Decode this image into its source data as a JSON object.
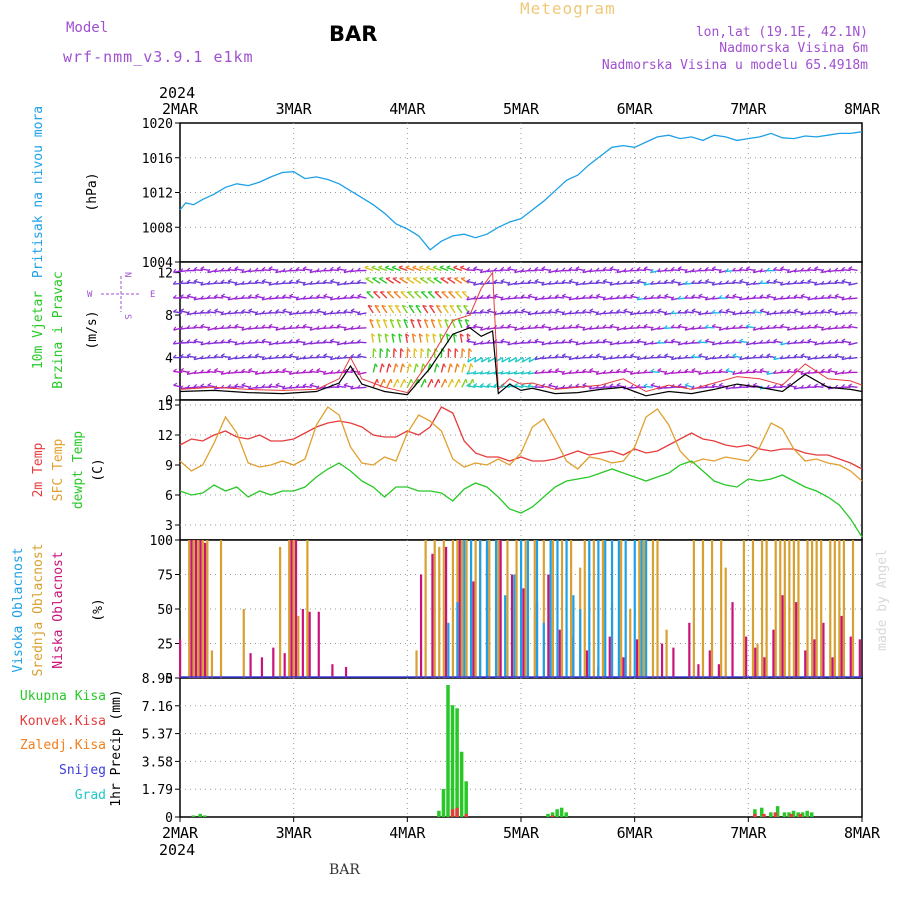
{
  "header": {
    "model_label": "Model",
    "model_value": "wrf-nmm_v3.9.1 e1km",
    "title": "BAR",
    "product": "Meteogram",
    "lonlat": "lon,lat (19.1E, 42.1N)",
    "elevation": "Nadmorska Visina 6m",
    "model_elevation": "Nadmorska Visina u modelu 65.4918m",
    "footer_station": "BAR",
    "watermark": "made by Angel"
  },
  "colors": {
    "pressure": "#1ea0e6",
    "t2m": "#e63c3c",
    "sfc": "#e0a030",
    "dewpt": "#28c828",
    "cloud_high": "#1ea0e6",
    "cloud_mid": "#d8a030",
    "cloud_low": "#c8147a",
    "precip_total": "#28c828",
    "precip_conv": "#e63c3c",
    "precip_frz": "#f08020",
    "precip_snow": "#3c3cdc",
    "precip_graupel": "#20c8c8",
    "purple_text": "#a050d0",
    "product_text": "#f0c878",
    "gust": "#e63c3c",
    "windspeed": "#000000"
  },
  "time_axis": {
    "year": "2024",
    "days": [
      "2MAR",
      "3MAR",
      "4MAR",
      "5MAR",
      "6MAR",
      "7MAR",
      "8MAR"
    ]
  },
  "chart_data": [
    {
      "id": "pressure",
      "type": "line",
      "ylabel_1": "Pritisak na nivou mora",
      "unit": "(hPa)",
      "ylim": [
        1004,
        1020
      ],
      "yticks": [
        "1004",
        "1008",
        "1012",
        "1016",
        "1020"
      ],
      "x_days": [
        0,
        0.05,
        0.12,
        0.2,
        0.3,
        0.4,
        0.5,
        0.6,
        0.7,
        0.8,
        0.9,
        1.0,
        1.1,
        1.2,
        1.3,
        1.4,
        1.5,
        1.6,
        1.7,
        1.8,
        1.9,
        2.0,
        2.1,
        2.2,
        2.3,
        2.4,
        2.5,
        2.6,
        2.7,
        2.8,
        2.9,
        3.0,
        3.1,
        3.2,
        3.3,
        3.4,
        3.5,
        3.6,
        3.7,
        3.8,
        3.9,
        4.0,
        4.1,
        4.2,
        4.3,
        4.4,
        4.5,
        4.6,
        4.7,
        4.8,
        4.9,
        5.0,
        5.1,
        5.2,
        5.3,
        5.4,
        5.5,
        5.6,
        5.7,
        5.8,
        5.9,
        6.0
      ],
      "values": [
        1010.0,
        1010.8,
        1010.6,
        1011.2,
        1011.8,
        1012.6,
        1013.0,
        1012.8,
        1013.2,
        1013.8,
        1014.3,
        1014.4,
        1013.6,
        1013.8,
        1013.5,
        1013.0,
        1012.2,
        1011.4,
        1010.6,
        1009.6,
        1008.4,
        1007.8,
        1007.0,
        1005.4,
        1006.4,
        1007.0,
        1007.2,
        1006.8,
        1007.2,
        1008.0,
        1008.6,
        1009.0,
        1010.0,
        1011.0,
        1012.2,
        1013.4,
        1014.0,
        1015.2,
        1016.2,
        1017.2,
        1017.4,
        1017.2,
        1017.8,
        1018.4,
        1018.6,
        1018.2,
        1018.4,
        1018.0,
        1018.6,
        1018.4,
        1018.0,
        1018.2,
        1018.4,
        1018.8,
        1018.3,
        1018.2,
        1018.5,
        1018.4,
        1018.6,
        1018.8,
        1018.8,
        1019.0
      ]
    },
    {
      "id": "wind",
      "type": "line",
      "ylabel_1": "10m Vjetar",
      "ylabel_2": "Brzina i Pravac",
      "unit": "(m/s)",
      "compass_north": "N",
      "compass_west": "W",
      "compass_east": "E",
      "compass_south": "S",
      "ylim": [
        0,
        13
      ],
      "yticks": [
        "0",
        "4",
        "8",
        "12"
      ],
      "x_days": [
        0,
        0.3,
        0.6,
        0.9,
        1.2,
        1.4,
        1.5,
        1.6,
        1.8,
        2.0,
        2.2,
        2.4,
        2.55,
        2.65,
        2.75,
        2.8,
        2.9,
        3.0,
        3.1,
        3.3,
        3.5,
        3.7,
        3.9,
        4.1,
        4.3,
        4.5,
        4.7,
        4.9,
        5.1,
        5.3,
        5.5,
        5.7,
        5.9,
        6.0
      ],
      "values": [
        0.8,
        0.9,
        0.7,
        0.6,
        0.8,
        1.6,
        3.2,
        1.5,
        0.8,
        0.5,
        3.0,
        6.2,
        6.8,
        6.0,
        6.5,
        0.6,
        1.5,
        0.9,
        1.1,
        0.6,
        0.7,
        1.0,
        1.2,
        0.4,
        0.8,
        0.6,
        1.0,
        1.5,
        1.2,
        0.8,
        2.4,
        1.2,
        1.0,
        0.8
      ],
      "gust_values": [
        1.0,
        1.2,
        1.0,
        0.9,
        1.0,
        2.0,
        4.0,
        2.0,
        1.2,
        0.7,
        3.8,
        7.5,
        8.0,
        10.5,
        12.0,
        1.0,
        2.0,
        1.5,
        1.6,
        1.0,
        1.2,
        1.4,
        2.0,
        0.8,
        1.4,
        1.0,
        1.6,
        2.2,
        2.0,
        1.4,
        3.4,
        2.0,
        1.8,
        1.4
      ]
    },
    {
      "id": "temperature",
      "type": "line",
      "ylabel_1": "2m Temp",
      "ylabel_2": "SFC Temp",
      "ylabel_3": "dewpt Temp",
      "unit": "(C)",
      "ylim": [
        1.5,
        15.5
      ],
      "yticks": [
        "3",
        "6",
        "9",
        "12",
        "15"
      ],
      "x_days": [
        0,
        0.1,
        0.2,
        0.3,
        0.4,
        0.5,
        0.6,
        0.7,
        0.8,
        0.9,
        1.0,
        1.1,
        1.2,
        1.3,
        1.4,
        1.5,
        1.6,
        1.7,
        1.8,
        1.9,
        2.0,
        2.1,
        2.2,
        2.3,
        2.4,
        2.5,
        2.6,
        2.7,
        2.8,
        2.9,
        3.0,
        3.1,
        3.2,
        3.3,
        3.4,
        3.5,
        3.6,
        3.7,
        3.8,
        3.9,
        4.0,
        4.1,
        4.2,
        4.3,
        4.4,
        4.5,
        4.6,
        4.7,
        4.8,
        4.9,
        5.0,
        5.1,
        5.2,
        5.3,
        5.4,
        5.5,
        5.6,
        5.7,
        5.8,
        5.9,
        6.0
      ],
      "series": [
        {
          "key": "t2m",
          "values": [
            11.0,
            11.6,
            11.4,
            12.0,
            12.4,
            11.8,
            11.6,
            12.0,
            11.4,
            11.4,
            11.6,
            12.2,
            12.8,
            13.2,
            13.4,
            13.2,
            12.8,
            12.0,
            11.8,
            11.8,
            12.4,
            12.0,
            12.8,
            14.8,
            14.2,
            11.4,
            10.2,
            9.8,
            9.8,
            9.4,
            9.8,
            9.4,
            9.4,
            9.6,
            10.0,
            10.4,
            10.0,
            10.2,
            10.4,
            10.0,
            10.6,
            10.2,
            10.4,
            11.0,
            11.6,
            12.2,
            11.6,
            11.4,
            11.0,
            10.8,
            11.0,
            10.6,
            10.4,
            10.6,
            10.6,
            10.2,
            10.0,
            10.0,
            9.6,
            9.2,
            8.6
          ]
        },
        {
          "key": "sfc",
          "values": [
            9.4,
            8.4,
            9.0,
            11.2,
            13.8,
            12.2,
            9.2,
            8.8,
            9.0,
            9.4,
            9.0,
            9.6,
            13.0,
            14.8,
            14.0,
            10.8,
            9.2,
            9.0,
            9.8,
            9.4,
            12.2,
            14.0,
            13.4,
            12.4,
            9.6,
            8.8,
            9.2,
            9.0,
            9.6,
            9.0,
            10.2,
            12.8,
            13.6,
            11.6,
            9.4,
            8.6,
            9.8,
            9.6,
            9.2,
            9.4,
            10.8,
            13.8,
            14.6,
            13.0,
            10.4,
            9.2,
            9.6,
            9.4,
            9.8,
            9.6,
            9.4,
            10.8,
            13.2,
            12.6,
            10.6,
            9.4,
            9.6,
            9.2,
            9.0,
            8.4,
            7.4
          ]
        },
        {
          "key": "dewpt",
          "values": [
            6.4,
            6.0,
            6.2,
            7.0,
            6.4,
            6.8,
            5.8,
            6.4,
            6.0,
            6.4,
            6.4,
            6.8,
            7.8,
            8.6,
            9.2,
            8.4,
            7.4,
            6.8,
            5.8,
            6.8,
            6.8,
            6.4,
            6.4,
            6.2,
            5.4,
            6.6,
            7.2,
            6.8,
            5.8,
            4.6,
            4.2,
            4.8,
            5.8,
            6.8,
            7.4,
            7.6,
            7.8,
            8.2,
            8.6,
            8.2,
            7.8,
            7.4,
            7.8,
            8.2,
            9.0,
            9.4,
            8.4,
            7.4,
            7.0,
            6.8,
            7.6,
            7.4,
            7.6,
            8.0,
            7.4,
            6.8,
            6.4,
            5.8,
            5.0,
            3.6,
            1.8
          ]
        }
      ]
    },
    {
      "id": "clouds",
      "type": "bar",
      "ylabel_1": "Visoka Oblacnost",
      "ylabel_2": "Srednja Oblacnost",
      "ylabel_3": "Niska Oblacnost",
      "unit": "(%)",
      "ylim": [
        0,
        100
      ],
      "yticks": [
        "0",
        "25",
        "50",
        "75",
        "100"
      ],
      "series": [
        {
          "key": "cloud_mid",
          "x": [
            0.08,
            0.12,
            0.16,
            0.2,
            0.24,
            0.28,
            0.36,
            0.56,
            0.88,
            0.96,
            1.0,
            1.04,
            1.12,
            2.08,
            2.16,
            2.24,
            2.28,
            2.32,
            2.4,
            2.44,
            2.48,
            2.52,
            2.6,
            2.64,
            2.72,
            2.8,
            2.88,
            2.96,
            3.04,
            3.12,
            3.2,
            3.28,
            3.36,
            3.44,
            3.52,
            3.56,
            3.64,
            3.72,
            3.8,
            3.88,
            3.96,
            4.04,
            4.08,
            4.16,
            4.2,
            4.28,
            4.52,
            4.6,
            4.68,
            4.76,
            4.8,
            4.96,
            5.04,
            5.08,
            5.12,
            5.16,
            5.24,
            5.28,
            5.32,
            5.36,
            5.4,
            5.44,
            5.52,
            5.56,
            5.6,
            5.64,
            5.72,
            5.76,
            5.8,
            5.84,
            5.92
          ],
          "values": [
            100,
            100,
            100,
            100,
            100,
            20,
            100,
            50,
            95,
            100,
            100,
            45,
            100,
            20,
            100,
            100,
            95,
            100,
            100,
            100,
            100,
            100,
            100,
            100,
            100,
            100,
            100,
            100,
            100,
            100,
            100,
            100,
            100,
            100,
            80,
            100,
            100,
            100,
            55,
            100,
            50,
            100,
            100,
            100,
            100,
            35,
            100,
            100,
            100,
            100,
            80,
            100,
            100,
            25,
            100,
            100,
            100,
            100,
            100,
            100,
            100,
            100,
            100,
            100,
            100,
            100,
            100,
            100,
            100,
            100,
            100
          ]
        },
        {
          "key": "cloud_low",
          "x": [
            0.0,
            0.1,
            0.14,
            0.18,
            0.22,
            0.62,
            0.72,
            0.82,
            0.92,
            0.98,
            1.02,
            1.08,
            1.14,
            1.22,
            1.34,
            1.46,
            2.12,
            2.22,
            2.34,
            2.46,
            2.58,
            2.7,
            2.82,
            2.92,
            3.02,
            3.14,
            3.24,
            3.34,
            3.46,
            3.58,
            3.68,
            3.78,
            3.9,
            4.02,
            4.24,
            4.34,
            4.48,
            4.56,
            4.66,
            4.74,
            4.86,
            4.98,
            5.06,
            5.14,
            5.22,
            5.3,
            5.42,
            5.5,
            5.58,
            5.66,
            5.74,
            5.82,
            5.9,
            5.98
          ],
          "values": [
            28,
            100,
            100,
            100,
            98,
            18,
            15,
            22,
            18,
            100,
            100,
            50,
            48,
            48,
            10,
            8,
            75,
            90,
            95,
            100,
            70,
            95,
            100,
            75,
            65,
            55,
            75,
            35,
            30,
            20,
            8,
            30,
            15,
            28,
            25,
            22,
            40,
            10,
            20,
            10,
            55,
            30,
            22,
            15,
            35,
            60,
            55,
            20,
            28,
            40,
            15,
            45,
            30,
            28
          ]
        },
        {
          "key": "cloud_high",
          "x": [
            2.36,
            2.44,
            2.5,
            2.56,
            2.64,
            2.7,
            2.78,
            2.86,
            2.94,
            3.0,
            3.06,
            3.14,
            3.2,
            3.26,
            3.32,
            3.4,
            3.46,
            3.52,
            3.6,
            3.68,
            3.74,
            3.8,
            3.86,
            3.92,
            4.0,
            4.06,
            4.1
          ],
          "values": [
            40,
            55,
            100,
            100,
            100,
            100,
            100,
            60,
            75,
            100,
            100,
            100,
            40,
            100,
            100,
            100,
            60,
            50,
            100,
            100,
            100,
            100,
            100,
            100,
            100,
            100,
            100
          ]
        }
      ]
    },
    {
      "id": "precip",
      "type": "bar",
      "ylabel_main": "1hr Precip (mm)",
      "legend": [
        "Ukupna Kisa",
        "Konvek.Kisa",
        "Zaledj.Kisa",
        "Snijeg",
        "Grad"
      ],
      "ylim": [
        0,
        8.95
      ],
      "yticks": [
        "0",
        "1.79",
        "3.58",
        "5.37",
        "7.16",
        "8.95"
      ],
      "series": [
        {
          "key": "precip_total",
          "x": [
            0.12,
            0.18,
            0.22,
            2.28,
            2.32,
            2.36,
            2.4,
            2.44,
            2.48,
            2.52,
            3.24,
            3.28,
            3.32,
            3.36,
            3.4,
            5.06,
            5.12,
            5.2,
            5.26,
            5.32,
            5.36,
            5.4,
            5.44,
            5.48,
            5.52,
            5.56
          ],
          "values": [
            0.1,
            0.2,
            0.1,
            0.4,
            1.8,
            8.5,
            7.2,
            7.0,
            4.2,
            2.3,
            0.2,
            0.3,
            0.5,
            0.6,
            0.3,
            0.5,
            0.6,
            0.3,
            0.7,
            0.3,
            0.3,
            0.4,
            0.3,
            0.3,
            0.4,
            0.3
          ]
        },
        {
          "key": "precip_conv",
          "x": [
            2.4,
            2.44,
            2.52,
            3.28,
            5.06,
            5.14,
            5.24,
            5.38,
            5.46
          ],
          "values": [
            0.5,
            0.6,
            0.2,
            0.1,
            0.2,
            0.2,
            0.3,
            0.2,
            0.2
          ]
        }
      ]
    }
  ]
}
